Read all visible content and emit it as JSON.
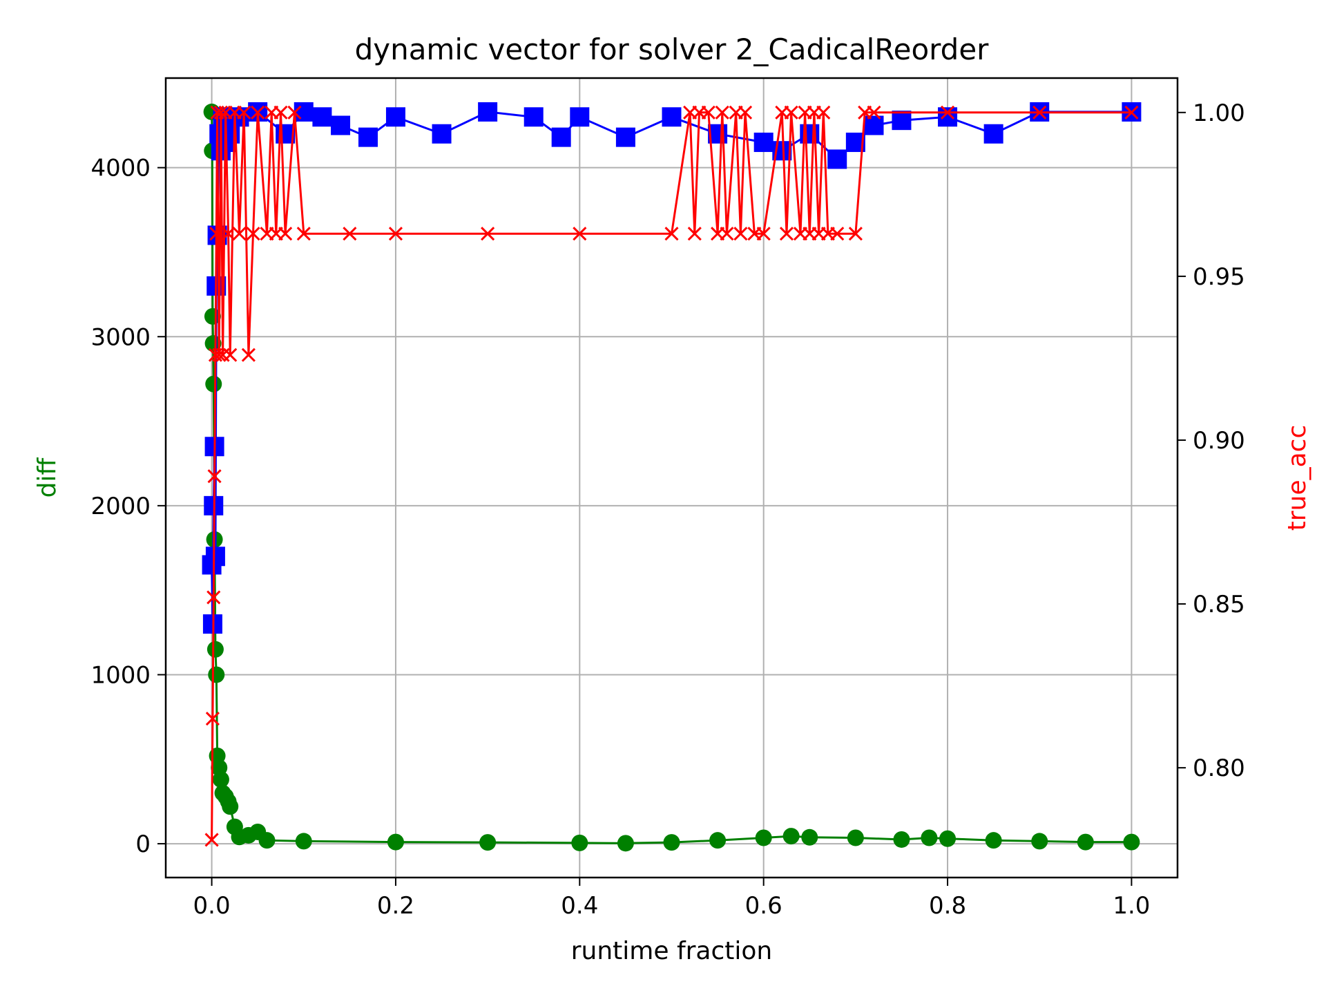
{
  "chart_data": {
    "type": "scatter",
    "title": "dynamic vector for solver 2_CadicalReorder",
    "xlabel": "runtime fraction",
    "ylabel_left": "diff",
    "ylabel_right": "true_acc",
    "xlim": [
      -0.05,
      1.05
    ],
    "ylim_left": [
      -200,
      4530
    ],
    "ylim_right": [
      0.7665,
      1.0105
    ],
    "grid": true,
    "x_ticks": [
      0.0,
      0.2,
      0.4,
      0.6,
      0.8,
      1.0
    ],
    "x_tick_labels": [
      "0.0",
      "0.2",
      "0.4",
      "0.6",
      "0.8",
      "1.0"
    ],
    "y_left_ticks": [
      0,
      1000,
      2000,
      3000,
      4000
    ],
    "y_left_tick_labels": [
      "0",
      "1000",
      "2000",
      "3000",
      "4000"
    ],
    "y_right_ticks": [
      0.8,
      0.85,
      0.9,
      0.95,
      1.0
    ],
    "y_right_tick_labels": [
      "0.80",
      "0.85",
      "0.90",
      "0.95",
      "1.00"
    ],
    "colors": {
      "diff": "#008000",
      "blue_series": "#0000ff",
      "true_acc": "#ff0000"
    },
    "series": [
      {
        "axis": "left",
        "marker": "circle",
        "color": "#008000",
        "x": [
          0.0,
          0.0005,
          0.001,
          0.0015,
          0.002,
          0.003,
          0.004,
          0.005,
          0.006,
          0.008,
          0.01,
          0.012,
          0.015,
          0.018,
          0.02,
          0.025,
          0.03,
          0.04,
          0.05,
          0.06,
          0.1,
          0.2,
          0.3,
          0.4,
          0.45,
          0.5,
          0.55,
          0.6,
          0.63,
          0.65,
          0.7,
          0.75,
          0.78,
          0.8,
          0.85,
          0.9,
          0.95,
          1.0
        ],
        "y": [
          4330,
          4100,
          3120,
          2960,
          2720,
          1800,
          1150,
          1000,
          520,
          450,
          380,
          300,
          280,
          250,
          220,
          100,
          40,
          50,
          70,
          20,
          15,
          10,
          8,
          5,
          3,
          8,
          20,
          35,
          45,
          38,
          35,
          25,
          35,
          30,
          20,
          15,
          10,
          10
        ]
      },
      {
        "axis": "left",
        "marker": "square",
        "color": "#0000ff",
        "x": [
          0.0,
          0.001,
          0.002,
          0.003,
          0.004,
          0.005,
          0.006,
          0.008,
          0.01,
          0.012,
          0.015,
          0.02,
          0.03,
          0.05,
          0.08,
          0.1,
          0.12,
          0.14,
          0.17,
          0.2,
          0.25,
          0.3,
          0.35,
          0.38,
          0.4,
          0.45,
          0.5,
          0.55,
          0.6,
          0.62,
          0.65,
          0.68,
          0.7,
          0.72,
          0.75,
          0.8,
          0.85,
          0.9,
          1.0
        ],
        "y": [
          1650,
          1300,
          2000,
          2350,
          1700,
          3300,
          3600,
          4200,
          4100,
          4300,
          4150,
          4200,
          4300,
          4330,
          4200,
          4330,
          4300,
          4250,
          4180,
          4300,
          4200,
          4330,
          4300,
          4180,
          4300,
          4180,
          4300,
          4200,
          4150,
          4100,
          4200,
          4050,
          4150,
          4250,
          4280,
          4300,
          4200,
          4330,
          4330
        ]
      },
      {
        "axis": "right",
        "marker": "x",
        "color": "#ff0000",
        "x": [
          0.0,
          0.001,
          0.002,
          0.003,
          0.004,
          0.005,
          0.006,
          0.008,
          0.01,
          0.012,
          0.015,
          0.018,
          0.02,
          0.025,
          0.03,
          0.035,
          0.04,
          0.045,
          0.05,
          0.06,
          0.065,
          0.07,
          0.075,
          0.08,
          0.09,
          0.1,
          0.15,
          0.2,
          0.3,
          0.4,
          0.5,
          0.52,
          0.525,
          0.53,
          0.54,
          0.55,
          0.555,
          0.56,
          0.57,
          0.575,
          0.58,
          0.59,
          0.6,
          0.62,
          0.625,
          0.63,
          0.64,
          0.645,
          0.65,
          0.655,
          0.66,
          0.665,
          0.67,
          0.68,
          0.7,
          0.71,
          0.72,
          0.8,
          0.9,
          1.0
        ],
        "y": [
          0.778,
          0.815,
          0.852,
          0.889,
          0.926,
          0.963,
          1.0,
          0.926,
          1.0,
          0.926,
          1.0,
          0.963,
          0.926,
          1.0,
          0.963,
          1.0,
          0.926,
          0.963,
          1.0,
          0.963,
          1.0,
          0.963,
          1.0,
          0.963,
          1.0,
          0.963,
          0.963,
          0.963,
          0.963,
          0.963,
          0.963,
          1.0,
          0.963,
          1.0,
          1.0,
          0.963,
          1.0,
          0.963,
          1.0,
          0.963,
          1.0,
          0.963,
          0.963,
          1.0,
          0.963,
          1.0,
          0.963,
          1.0,
          0.963,
          1.0,
          0.963,
          1.0,
          0.963,
          0.963,
          0.963,
          1.0,
          1.0,
          1.0,
          1.0,
          1.0
        ]
      }
    ]
  }
}
